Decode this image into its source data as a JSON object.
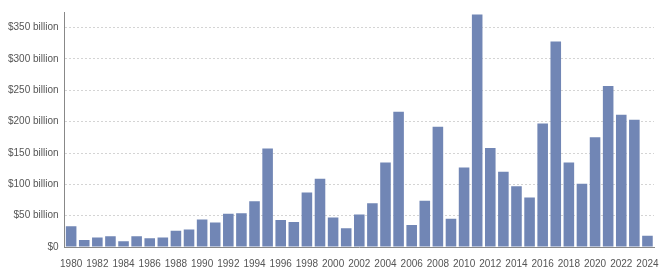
{
  "chart_data": {
    "type": "bar",
    "categories": [
      "1980",
      null,
      "1982",
      null,
      "1984",
      null,
      "1986",
      null,
      "1988",
      null,
      "1990",
      null,
      "1992",
      null,
      "1994",
      null,
      "1996",
      null,
      "1998",
      null,
      "2000",
      null,
      "2002",
      null,
      "2004",
      null,
      "2006",
      null,
      "2008",
      null,
      "2010",
      null,
      "2012",
      null,
      "2014",
      null,
      "2016",
      null,
      "2018",
      null,
      "2020",
      null,
      "2022",
      null,
      "2024"
    ],
    "values": [
      33,
      11,
      15,
      17,
      9,
      17,
      14,
      15,
      26,
      28,
      44,
      39,
      53,
      54,
      73,
      157,
      43,
      40,
      87,
      109,
      47,
      30,
      52,
      70,
      135,
      216,
      35,
      74,
      192,
      45,
      127,
      371,
      158,
      120,
      97,
      79,
      197,
      328,
      135,
      101,
      175,
      257,
      211,
      203,
      18
    ],
    "color": "#7186b5",
    "ylim": [
      0,
      375
    ],
    "yticks": [
      {
        "value": 0,
        "label": "$0"
      },
      {
        "value": 50,
        "label": "$50 billion"
      },
      {
        "value": 100,
        "label": "$100 billion"
      },
      {
        "value": 150,
        "label": "$150 billion"
      },
      {
        "value": 200,
        "label": "$200 billion"
      },
      {
        "value": 250,
        "label": "$250 billion"
      },
      {
        "value": 300,
        "label": "$300 billion"
      },
      {
        "value": 350,
        "label": "$350 billion"
      }
    ],
    "grid": true
  }
}
